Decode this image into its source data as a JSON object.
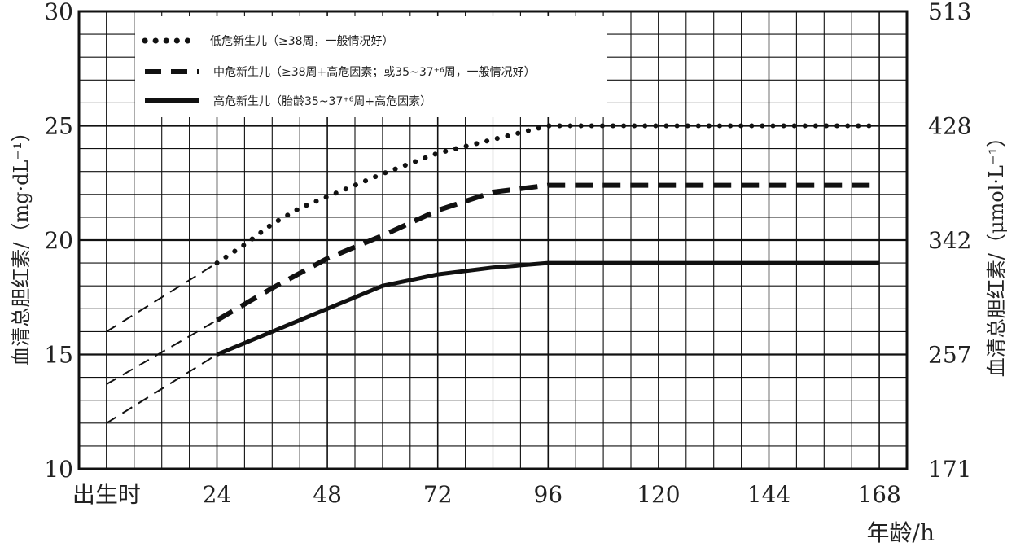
{
  "chart_data": {
    "type": "line",
    "title": "",
    "xlabel": "年龄/h",
    "ylabel_left": "血清总胆红素/（mg·dL⁻¹）",
    "ylabel_right": "血清总胆红素/（μmol·L⁻¹）",
    "x_ticks": [
      0,
      24,
      48,
      72,
      96,
      120,
      144,
      168
    ],
    "x_tick_labels": [
      "出生时",
      "24",
      "48",
      "72",
      "96",
      "120",
      "144",
      "168"
    ],
    "xlim": [
      -6,
      174
    ],
    "ylim": [
      10,
      30
    ],
    "y_ticks_left": [
      10,
      15,
      20,
      25,
      30
    ],
    "y_tick_labels_left": [
      "10",
      "15",
      "20",
      "25",
      "30"
    ],
    "y_ticks_right_at": [
      10,
      15,
      20,
      25,
      30
    ],
    "y_tick_labels_right": [
      "171",
      "257",
      "342",
      "428",
      "513"
    ],
    "grid": true,
    "legend_position": "top-left",
    "series": [
      {
        "name": "低危新生儿（≥38周，一般情况好）",
        "style": "dotted",
        "x": [
          24,
          30,
          36,
          42,
          48,
          60,
          72,
          84,
          96,
          120,
          144,
          168
        ],
        "y": [
          19.0,
          19.8,
          20.7,
          21.4,
          21.9,
          22.9,
          23.8,
          24.4,
          25.0,
          25.0,
          25.0,
          25.0
        ],
        "extrapolated_x": [
          0,
          24
        ],
        "extrapolated_y": [
          16.0,
          19.0
        ]
      },
      {
        "name": "中危新生儿（≥38周+高危因素；或35~37⁺⁶周，一般情况好）",
        "style": "dashed",
        "x": [
          24,
          36,
          48,
          60,
          72,
          84,
          96,
          120,
          144,
          168
        ],
        "y": [
          16.5,
          17.9,
          19.2,
          20.2,
          21.3,
          22.1,
          22.4,
          22.4,
          22.4,
          22.4
        ],
        "extrapolated_x": [
          0,
          24
        ],
        "extrapolated_y": [
          13.7,
          16.5
        ]
      },
      {
        "name": "高危新生儿（胎龄35~37⁺⁶周+高危因素）",
        "style": "solid",
        "x": [
          24,
          36,
          48,
          60,
          72,
          84,
          96,
          120,
          144,
          168
        ],
        "y": [
          15.0,
          16.0,
          17.0,
          18.0,
          18.5,
          18.8,
          19.0,
          19.0,
          19.0,
          19.0
        ],
        "extrapolated_x": [
          0,
          24
        ],
        "extrapolated_y": [
          12.0,
          15.0
        ]
      }
    ]
  }
}
